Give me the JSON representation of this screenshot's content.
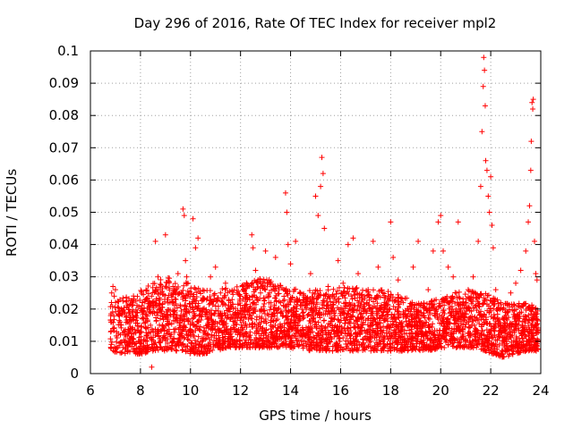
{
  "chart_data": {
    "type": "scatter",
    "title": "Day 296 of 2016, Rate Of TEC Index for receiver mpl2",
    "xlabel": "GPS time / hours",
    "ylabel": "ROTI / TECUs",
    "xlim": [
      6,
      24
    ],
    "ylim": [
      0,
      0.1
    ],
    "xticks": [
      "6",
      "8",
      "10",
      "12",
      "14",
      "16",
      "18",
      "20",
      "22",
      "24"
    ],
    "yticks": [
      "0",
      "0.01",
      "0.02",
      "0.03",
      "0.04",
      "0.05",
      "0.06",
      "0.07",
      "0.08",
      "0.09",
      "0.1"
    ],
    "marker": "+",
    "grid": true,
    "color": "#ff0000",
    "series": [
      {
        "name": "ROTI",
        "points": [
          [
            6.85,
            0.025
          ],
          [
            6.9,
            0.027
          ],
          [
            6.95,
            0.024
          ],
          [
            7.0,
            0.026
          ],
          [
            7.1,
            0.008
          ],
          [
            7.2,
            0.012
          ],
          [
            7.4,
            0.01
          ],
          [
            7.6,
            0.014
          ],
          [
            7.8,
            0.018
          ],
          [
            8.0,
            0.013
          ],
          [
            8.2,
            0.016
          ],
          [
            8.4,
            0.015
          ],
          [
            8.45,
            0.002
          ],
          [
            8.5,
            0.021
          ],
          [
            8.6,
            0.041
          ],
          [
            8.7,
            0.03
          ],
          [
            8.8,
            0.025
          ],
          [
            9.0,
            0.043
          ],
          [
            9.1,
            0.023
          ],
          [
            9.3,
            0.027
          ],
          [
            9.5,
            0.031
          ],
          [
            9.7,
            0.051
          ],
          [
            9.75,
            0.049
          ],
          [
            9.8,
            0.035
          ],
          [
            9.85,
            0.03
          ],
          [
            9.9,
            0.028
          ],
          [
            10.1,
            0.048
          ],
          [
            10.2,
            0.039
          ],
          [
            10.3,
            0.042
          ],
          [
            10.5,
            0.02
          ],
          [
            10.7,
            0.017
          ],
          [
            10.8,
            0.03
          ],
          [
            11.0,
            0.033
          ],
          [
            11.2,
            0.025
          ],
          [
            11.4,
            0.028
          ],
          [
            11.6,
            0.021
          ],
          [
            11.8,
            0.019
          ],
          [
            12.0,
            0.024
          ],
          [
            12.3,
            0.02
          ],
          [
            12.45,
            0.043
          ],
          [
            12.5,
            0.039
          ],
          [
            12.6,
            0.032
          ],
          [
            12.8,
            0.025
          ],
          [
            13.0,
            0.038
          ],
          [
            13.2,
            0.028
          ],
          [
            13.4,
            0.036
          ],
          [
            13.6,
            0.022
          ],
          [
            13.8,
            0.056
          ],
          [
            13.85,
            0.05
          ],
          [
            13.9,
            0.04
          ],
          [
            14.0,
            0.034
          ],
          [
            14.2,
            0.041
          ],
          [
            14.4,
            0.025
          ],
          [
            14.6,
            0.021
          ],
          [
            14.8,
            0.031
          ],
          [
            15.0,
            0.055
          ],
          [
            15.1,
            0.049
          ],
          [
            15.2,
            0.058
          ],
          [
            15.25,
            0.067
          ],
          [
            15.3,
            0.062
          ],
          [
            15.35,
            0.045
          ],
          [
            15.5,
            0.027
          ],
          [
            15.7,
            0.022
          ],
          [
            15.9,
            0.035
          ],
          [
            16.1,
            0.028
          ],
          [
            16.3,
            0.04
          ],
          [
            16.5,
            0.042
          ],
          [
            16.7,
            0.031
          ],
          [
            16.9,
            0.02
          ],
          [
            17.1,
            0.026
          ],
          [
            17.3,
            0.041
          ],
          [
            17.5,
            0.033
          ],
          [
            17.7,
            0.019
          ],
          [
            17.9,
            0.024
          ],
          [
            18.0,
            0.047
          ],
          [
            18.1,
            0.036
          ],
          [
            18.3,
            0.029
          ],
          [
            18.5,
            0.022
          ],
          [
            18.7,
            0.02
          ],
          [
            18.9,
            0.033
          ],
          [
            19.1,
            0.041
          ],
          [
            19.3,
            0.018
          ],
          [
            19.5,
            0.026
          ],
          [
            19.7,
            0.038
          ],
          [
            19.9,
            0.047
          ],
          [
            20.0,
            0.049
          ],
          [
            20.1,
            0.038
          ],
          [
            20.3,
            0.033
          ],
          [
            20.5,
            0.03
          ],
          [
            20.7,
            0.047
          ],
          [
            20.9,
            0.022
          ],
          [
            21.1,
            0.026
          ],
          [
            21.3,
            0.03
          ],
          [
            21.5,
            0.041
          ],
          [
            21.6,
            0.058
          ],
          [
            21.65,
            0.075
          ],
          [
            21.7,
            0.089
          ],
          [
            21.72,
            0.098
          ],
          [
            21.75,
            0.094
          ],
          [
            21.78,
            0.083
          ],
          [
            21.8,
            0.066
          ],
          [
            21.85,
            0.063
          ],
          [
            21.9,
            0.055
          ],
          [
            21.95,
            0.05
          ],
          [
            22.0,
            0.061
          ],
          [
            22.05,
            0.046
          ],
          [
            22.1,
            0.039
          ],
          [
            22.2,
            0.026
          ],
          [
            22.4,
            0.022
          ],
          [
            22.6,
            0.018
          ],
          [
            22.8,
            0.025
          ],
          [
            23.0,
            0.028
          ],
          [
            23.2,
            0.032
          ],
          [
            23.4,
            0.038
          ],
          [
            23.5,
            0.047
          ],
          [
            23.55,
            0.052
          ],
          [
            23.6,
            0.063
          ],
          [
            23.62,
            0.072
          ],
          [
            23.65,
            0.084
          ],
          [
            23.68,
            0.082
          ],
          [
            23.7,
            0.085
          ],
          [
            23.75,
            0.041
          ],
          [
            23.8,
            0.031
          ],
          [
            23.85,
            0.029
          ]
        ],
        "baseline_band": [
          [
            6.8,
            0.007,
            0.022
          ],
          [
            7.5,
            0.006,
            0.024
          ],
          [
            8.0,
            0.006,
            0.026
          ],
          [
            8.5,
            0.007,
            0.028
          ],
          [
            9.0,
            0.007,
            0.03
          ],
          [
            9.5,
            0.007,
            0.029
          ],
          [
            10.0,
            0.006,
            0.028
          ],
          [
            10.5,
            0.006,
            0.026
          ],
          [
            11.0,
            0.007,
            0.026
          ],
          [
            11.5,
            0.008,
            0.027
          ],
          [
            12.0,
            0.008,
            0.027
          ],
          [
            12.5,
            0.008,
            0.03
          ],
          [
            13.0,
            0.008,
            0.03
          ],
          [
            13.5,
            0.008,
            0.028
          ],
          [
            14.0,
            0.008,
            0.027
          ],
          [
            14.5,
            0.007,
            0.026
          ],
          [
            15.0,
            0.007,
            0.026
          ],
          [
            15.5,
            0.007,
            0.026
          ],
          [
            16.0,
            0.007,
            0.027
          ],
          [
            16.5,
            0.007,
            0.027
          ],
          [
            17.0,
            0.007,
            0.026
          ],
          [
            17.5,
            0.007,
            0.026
          ],
          [
            18.0,
            0.007,
            0.026
          ],
          [
            18.5,
            0.007,
            0.024
          ],
          [
            19.0,
            0.007,
            0.022
          ],
          [
            19.5,
            0.007,
            0.022
          ],
          [
            20.0,
            0.008,
            0.024
          ],
          [
            20.5,
            0.008,
            0.025
          ],
          [
            21.0,
            0.008,
            0.026
          ],
          [
            21.5,
            0.008,
            0.026
          ],
          [
            22.0,
            0.006,
            0.024
          ],
          [
            22.5,
            0.005,
            0.022
          ],
          [
            23.0,
            0.006,
            0.022
          ],
          [
            23.5,
            0.007,
            0.022
          ],
          [
            23.9,
            0.007,
            0.02
          ]
        ]
      }
    ]
  }
}
